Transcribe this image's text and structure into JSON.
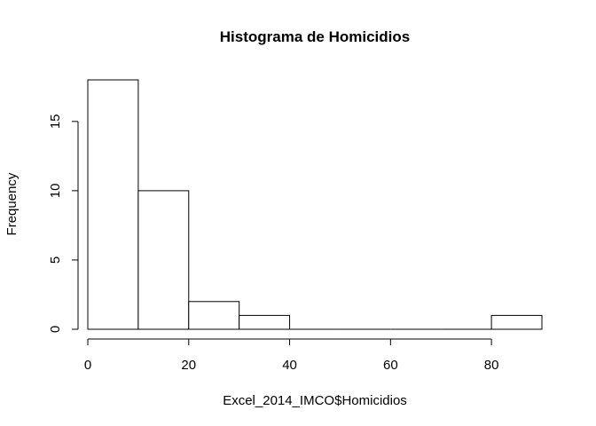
{
  "chart_data": {
    "type": "bar",
    "subtype": "histogram",
    "title": "Histograma de Homicidios",
    "xlabel": "Excel_2014_IMCO$Homicidios",
    "ylabel": "Frequency",
    "bins": [
      {
        "from": 0,
        "to": 10,
        "count": 18
      },
      {
        "from": 10,
        "to": 20,
        "count": 10
      },
      {
        "from": 20,
        "to": 30,
        "count": 2
      },
      {
        "from": 30,
        "to": 40,
        "count": 1
      },
      {
        "from": 40,
        "to": 50,
        "count": 0
      },
      {
        "from": 50,
        "to": 60,
        "count": 0
      },
      {
        "from": 60,
        "to": 70,
        "count": 0
      },
      {
        "from": 70,
        "to": 80,
        "count": 0
      },
      {
        "from": 80,
        "to": 90,
        "count": 1
      }
    ],
    "xlim": [
      0,
      90
    ],
    "ylim": [
      0,
      18
    ],
    "x_ticks": [
      "0",
      "20",
      "40",
      "60",
      "80"
    ],
    "y_ticks": [
      "0",
      "5",
      "10",
      "15"
    ],
    "grid": false,
    "bar_fill": "#ffffff",
    "bar_stroke": "#000000"
  }
}
